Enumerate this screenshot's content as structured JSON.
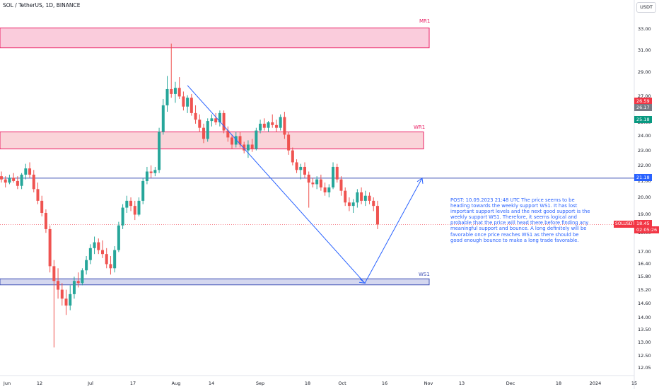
{
  "header": {
    "title": "SOL / TetherUS, 1D, BINANCE",
    "currency": "USDT"
  },
  "chart_data": {
    "type": "candlestick",
    "y_ticks": [
      33.0,
      31.0,
      29.0,
      27.0,
      26.0,
      25.0,
      24.0,
      23.0,
      22.0,
      21.0,
      20.0,
      19.0,
      18.0,
      17.0,
      16.4,
      15.8,
      15.2,
      14.6,
      14.0,
      13.5,
      13.0,
      12.5,
      12.05
    ],
    "x_ticks": [
      "Jun",
      "12",
      "Jul",
      "17",
      "Aug",
      "14",
      "Sep",
      "18",
      "Oct",
      "16",
      "Nov",
      "13",
      "Dec",
      "18",
      "2024",
      "15"
    ],
    "candles": [
      {
        "o": 21.3,
        "h": 21.6,
        "l": 20.9,
        "c": 21.1
      },
      {
        "o": 21.1,
        "h": 21.3,
        "l": 20.6,
        "c": 20.9
      },
      {
        "o": 20.9,
        "h": 21.4,
        "l": 20.8,
        "c": 21.2
      },
      {
        "o": 21.2,
        "h": 21.5,
        "l": 20.9,
        "c": 21.0
      },
      {
        "o": 21.0,
        "h": 21.3,
        "l": 20.5,
        "c": 20.7
      },
      {
        "o": 20.7,
        "h": 21.5,
        "l": 20.5,
        "c": 21.4
      },
      {
        "o": 21.4,
        "h": 22.1,
        "l": 21.1,
        "c": 21.8
      },
      {
        "o": 21.8,
        "h": 22.2,
        "l": 21.2,
        "c": 21.4
      },
      {
        "o": 21.4,
        "h": 21.7,
        "l": 20.3,
        "c": 20.5
      },
      {
        "o": 20.5,
        "h": 20.9,
        "l": 19.6,
        "c": 19.8
      },
      {
        "o": 19.8,
        "h": 20.1,
        "l": 18.9,
        "c": 19.1
      },
      {
        "o": 19.1,
        "h": 19.3,
        "l": 18.0,
        "c": 18.2
      },
      {
        "o": 18.2,
        "h": 18.4,
        "l": 16.0,
        "c": 16.3
      },
      {
        "o": 16.3,
        "h": 16.6,
        "l": 12.8,
        "c": 15.6
      },
      {
        "o": 15.6,
        "h": 16.2,
        "l": 14.8,
        "c": 15.2
      },
      {
        "o": 15.2,
        "h": 15.5,
        "l": 14.5,
        "c": 14.8
      },
      {
        "o": 14.8,
        "h": 15.2,
        "l": 14.1,
        "c": 14.5
      },
      {
        "o": 14.5,
        "h": 15.4,
        "l": 14.3,
        "c": 15.0
      },
      {
        "o": 15.0,
        "h": 15.8,
        "l": 14.8,
        "c": 15.6
      },
      {
        "o": 15.6,
        "h": 16.0,
        "l": 15.3,
        "c": 15.5
      },
      {
        "o": 15.5,
        "h": 16.2,
        "l": 15.4,
        "c": 16.1
      },
      {
        "o": 16.1,
        "h": 16.8,
        "l": 15.9,
        "c": 16.6
      },
      {
        "o": 16.6,
        "h": 17.4,
        "l": 16.4,
        "c": 17.2
      },
      {
        "o": 17.2,
        "h": 17.8,
        "l": 16.9,
        "c": 17.5
      },
      {
        "o": 17.5,
        "h": 17.7,
        "l": 16.9,
        "c": 17.1
      },
      {
        "o": 17.1,
        "h": 17.6,
        "l": 16.7,
        "c": 16.9
      },
      {
        "o": 16.9,
        "h": 17.2,
        "l": 16.2,
        "c": 16.4
      },
      {
        "o": 16.4,
        "h": 16.8,
        "l": 15.9,
        "c": 16.2
      },
      {
        "o": 16.2,
        "h": 17.3,
        "l": 16.0,
        "c": 17.1
      },
      {
        "o": 17.1,
        "h": 18.6,
        "l": 17.0,
        "c": 18.4
      },
      {
        "o": 18.4,
        "h": 19.6,
        "l": 18.2,
        "c": 19.4
      },
      {
        "o": 19.4,
        "h": 20.1,
        "l": 19.1,
        "c": 19.8
      },
      {
        "o": 19.8,
        "h": 20.0,
        "l": 19.2,
        "c": 19.5
      },
      {
        "o": 19.5,
        "h": 19.8,
        "l": 18.7,
        "c": 19.0
      },
      {
        "o": 19.0,
        "h": 20.0,
        "l": 18.9,
        "c": 19.8
      },
      {
        "o": 19.8,
        "h": 21.2,
        "l": 19.6,
        "c": 21.0
      },
      {
        "o": 21.0,
        "h": 21.9,
        "l": 20.8,
        "c": 21.6
      },
      {
        "o": 21.6,
        "h": 22.0,
        "l": 21.2,
        "c": 21.5
      },
      {
        "o": 21.5,
        "h": 21.9,
        "l": 21.3,
        "c": 21.7
      },
      {
        "o": 21.7,
        "h": 24.6,
        "l": 21.5,
        "c": 24.3
      },
      {
        "o": 24.3,
        "h": 26.8,
        "l": 24.1,
        "c": 26.3
      },
      {
        "o": 26.3,
        "h": 28.7,
        "l": 25.8,
        "c": 27.6
      },
      {
        "o": 27.6,
        "h": 31.6,
        "l": 26.9,
        "c": 27.2
      },
      {
        "o": 27.2,
        "h": 28.2,
        "l": 26.5,
        "c": 27.7
      },
      {
        "o": 27.7,
        "h": 28.6,
        "l": 26.8,
        "c": 27.0
      },
      {
        "o": 27.0,
        "h": 27.4,
        "l": 25.9,
        "c": 26.2
      },
      {
        "o": 26.2,
        "h": 27.1,
        "l": 25.7,
        "c": 26.9
      },
      {
        "o": 26.9,
        "h": 27.2,
        "l": 25.5,
        "c": 25.7
      },
      {
        "o": 25.7,
        "h": 26.3,
        "l": 24.9,
        "c": 25.2
      },
      {
        "o": 25.2,
        "h": 25.6,
        "l": 24.3,
        "c": 24.6
      },
      {
        "o": 24.6,
        "h": 24.9,
        "l": 23.5,
        "c": 23.8
      },
      {
        "o": 23.8,
        "h": 25.3,
        "l": 23.6,
        "c": 25.1
      },
      {
        "o": 25.1,
        "h": 25.6,
        "l": 24.7,
        "c": 25.3
      },
      {
        "o": 25.3,
        "h": 25.7,
        "l": 24.8,
        "c": 25.0
      },
      {
        "o": 25.0,
        "h": 25.9,
        "l": 24.7,
        "c": 25.7
      },
      {
        "o": 25.7,
        "h": 25.9,
        "l": 24.2,
        "c": 24.4
      },
      {
        "o": 24.4,
        "h": 24.7,
        "l": 23.6,
        "c": 23.9
      },
      {
        "o": 23.9,
        "h": 24.1,
        "l": 23.1,
        "c": 23.4
      },
      {
        "o": 23.4,
        "h": 24.3,
        "l": 23.2,
        "c": 24.0
      },
      {
        "o": 24.0,
        "h": 24.3,
        "l": 23.2,
        "c": 23.4
      },
      {
        "o": 23.4,
        "h": 23.6,
        "l": 22.8,
        "c": 23.0
      },
      {
        "o": 23.0,
        "h": 23.7,
        "l": 22.5,
        "c": 23.4
      },
      {
        "o": 23.4,
        "h": 23.8,
        "l": 22.9,
        "c": 23.1
      },
      {
        "o": 23.1,
        "h": 24.6,
        "l": 23.0,
        "c": 24.4
      },
      {
        "o": 24.4,
        "h": 25.2,
        "l": 24.2,
        "c": 24.9
      },
      {
        "o": 24.9,
        "h": 25.3,
        "l": 24.4,
        "c": 24.6
      },
      {
        "o": 24.6,
        "h": 25.1,
        "l": 24.3,
        "c": 25.0
      },
      {
        "o": 25.0,
        "h": 25.6,
        "l": 24.6,
        "c": 24.8
      },
      {
        "o": 24.8,
        "h": 25.2,
        "l": 24.3,
        "c": 24.6
      },
      {
        "o": 24.6,
        "h": 25.6,
        "l": 24.4,
        "c": 25.4
      },
      {
        "o": 25.4,
        "h": 25.8,
        "l": 23.8,
        "c": 24.1
      },
      {
        "o": 24.1,
        "h": 24.3,
        "l": 22.7,
        "c": 23.0
      },
      {
        "o": 23.0,
        "h": 23.2,
        "l": 22.0,
        "c": 22.2
      },
      {
        "o": 22.2,
        "h": 22.4,
        "l": 21.5,
        "c": 21.7
      },
      {
        "o": 21.7,
        "h": 22.1,
        "l": 21.1,
        "c": 21.9
      },
      {
        "o": 21.9,
        "h": 22.2,
        "l": 21.2,
        "c": 21.4
      },
      {
        "o": 21.4,
        "h": 21.6,
        "l": 19.4,
        "c": 20.9
      },
      {
        "o": 20.9,
        "h": 21.2,
        "l": 20.6,
        "c": 20.8
      },
      {
        "o": 20.8,
        "h": 21.3,
        "l": 20.5,
        "c": 21.1
      },
      {
        "o": 21.1,
        "h": 21.4,
        "l": 20.4,
        "c": 20.6
      },
      {
        "o": 20.6,
        "h": 20.9,
        "l": 20.1,
        "c": 20.3
      },
      {
        "o": 20.3,
        "h": 20.8,
        "l": 20.0,
        "c": 20.6
      },
      {
        "o": 20.6,
        "h": 22.2,
        "l": 20.5,
        "c": 21.9
      },
      {
        "o": 21.9,
        "h": 22.1,
        "l": 20.9,
        "c": 21.1
      },
      {
        "o": 21.1,
        "h": 21.3,
        "l": 20.1,
        "c": 20.4
      },
      {
        "o": 20.4,
        "h": 20.6,
        "l": 19.5,
        "c": 19.7
      },
      {
        "o": 19.7,
        "h": 20.0,
        "l": 19.2,
        "c": 19.5
      },
      {
        "o": 19.5,
        "h": 19.9,
        "l": 19.1,
        "c": 19.7
      },
      {
        "o": 19.7,
        "h": 20.5,
        "l": 19.4,
        "c": 20.3
      },
      {
        "o": 20.3,
        "h": 20.6,
        "l": 19.6,
        "c": 19.8
      },
      {
        "o": 19.8,
        "h": 20.4,
        "l": 19.5,
        "c": 20.1
      },
      {
        "o": 20.1,
        "h": 20.3,
        "l": 19.6,
        "c": 19.8
      },
      {
        "o": 19.8,
        "h": 20.0,
        "l": 19.2,
        "c": 19.5
      },
      {
        "o": 19.5,
        "h": 19.8,
        "l": 18.2,
        "c": 18.45
      }
    ],
    "zones": [
      {
        "name": "MR1",
        "top": 33.1,
        "bottom": 31.2,
        "fill": "#f8bbd0",
        "stroke": "#e91e63"
      },
      {
        "name": "WR1",
        "top": 24.3,
        "bottom": 23.1,
        "fill": "#f8c6cc",
        "stroke": "#e91e63"
      },
      {
        "name": "WS1",
        "top": 15.7,
        "bottom": 15.42,
        "fill": "#c5cae9",
        "stroke": "#3f51b5"
      }
    ],
    "horizontal_line": 21.18,
    "trendline": {
      "from_index": 46,
      "from_value": 27.9
    },
    "projection": {
      "low": 15.5,
      "high": 21.18
    },
    "last_price": 18.45
  },
  "axis_labels": {
    "current_price": "18.45",
    "countdown": "02:05:26",
    "symbol": "SOLUSDT",
    "level_26_59": "26.59",
    "level_26_17": "26.17",
    "level_25_18": "25.18",
    "level_21_18": "21.18"
  },
  "annotation": {
    "text": "POST: 10.09.2023 21:48 UTC\nThe price seems to be heading towards the weekly support WS1. It has lost important support levels and the next good support is the weekly support WS1. Therefore, it seems logical and probable that the price will head there before finding any meaningful support and bounce. A long definitely will be favorable once price reaches WS1 as there should be good enough bounce to make a long trade favorable."
  },
  "colors": {
    "up": "#26a69a",
    "down": "#ef5350",
    "line": "#2962ff",
    "accent_red": "#f23645"
  }
}
